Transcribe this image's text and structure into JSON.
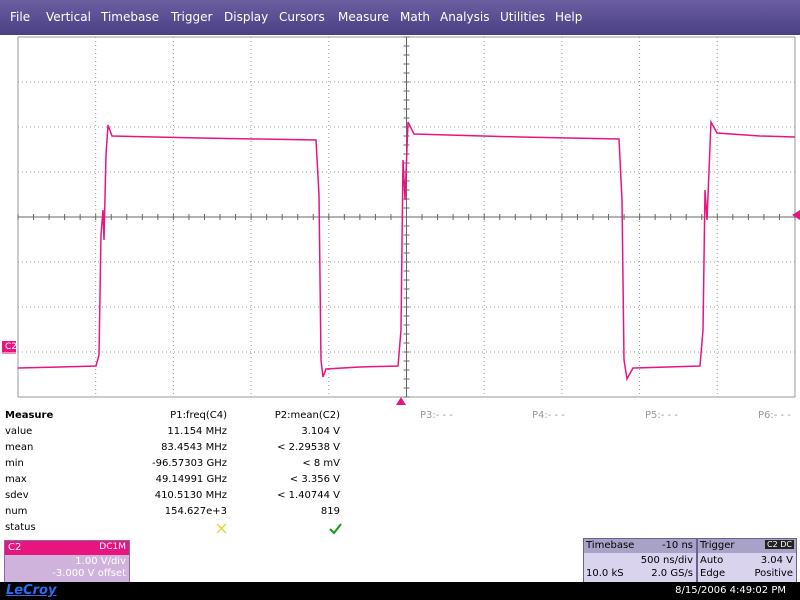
{
  "menu": [
    "File",
    "Vertical",
    "Timebase",
    "Trigger",
    "Display",
    "Cursors",
    "Measure",
    "Math",
    "Analysis",
    "Utilities",
    "Help"
  ],
  "channel_marker": "C2",
  "measure": {
    "title": "Measure",
    "params": [
      "P1:freq(C4)",
      "P2:mean(C2)",
      "P3:- - -",
      "P4:- - -",
      "P5:- - -",
      "P6:- - -"
    ],
    "rows": [
      {
        "label": "value",
        "cells": [
          "11.154 MHz",
          "3.104 V"
        ]
      },
      {
        "label": "mean",
        "cells": [
          "83.4543 MHz",
          "< 2.29538 V"
        ]
      },
      {
        "label": "min",
        "cells": [
          "-96.57303 GHz",
          "< 8 mV"
        ]
      },
      {
        "label": "max",
        "cells": [
          "49.14991 GHz",
          "< 3.356 V"
        ]
      },
      {
        "label": "sdev",
        "cells": [
          "410.5130 MHz",
          "< 1.40744 V"
        ]
      },
      {
        "label": "num",
        "cells": [
          "154.627e+3",
          "819"
        ]
      }
    ],
    "status_label": "status"
  },
  "channel": {
    "name": "C2",
    "coupling": "DC1M",
    "scale": "1.00 V/div",
    "offset": "-3.000 V offset"
  },
  "timebase": {
    "title": "Timebase",
    "delay": "-10 ns",
    "scale": "500 ns/div",
    "samples": "10.0 kS",
    "rate": "2.0 GS/s"
  },
  "trigger": {
    "title": "Trigger",
    "source": "C2 DC",
    "mode": "Auto",
    "level": "3.04 V",
    "type": "Edge",
    "slope": "Positive"
  },
  "footer": {
    "brand": "LeCroy",
    "datetime": "8/15/2006 4:49:02 PM"
  }
}
